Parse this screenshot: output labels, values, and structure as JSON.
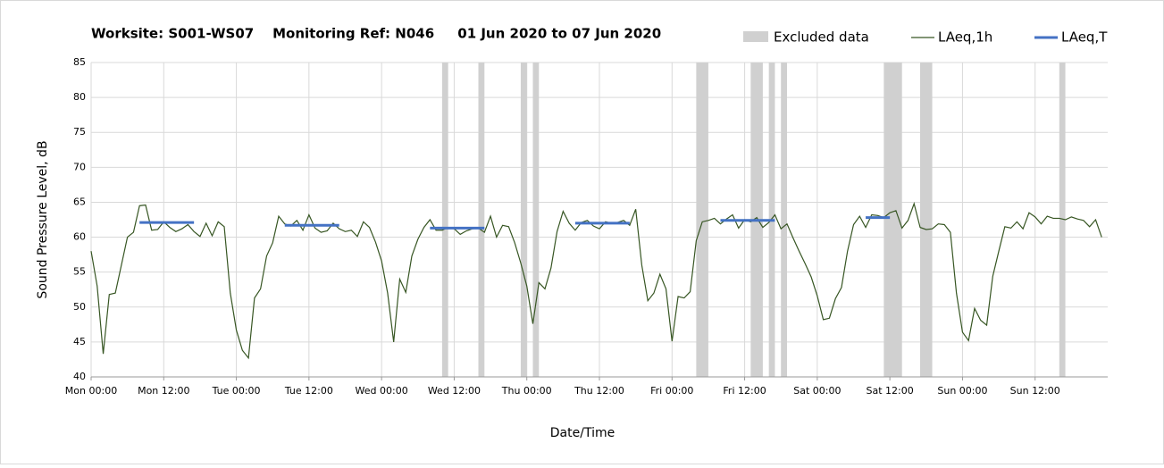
{
  "chart_data": {
    "type": "line",
    "title": "Worksite: S001-WS07    Monitoring Ref: N046     01 Jun 2020 to 07 Jun 2020",
    "xlabel": "Date/Time",
    "ylabel": "Sound Pressure Level, dB",
    "xlim": [
      0,
      168
    ],
    "xticks": [
      {
        "value": 0,
        "label": "Mon 00:00"
      },
      {
        "value": 12,
        "label": "Mon 12:00"
      },
      {
        "value": 24,
        "label": "Tue 00:00"
      },
      {
        "value": 36,
        "label": "Tue 12:00"
      },
      {
        "value": 48,
        "label": "Wed 00:00"
      },
      {
        "value": 60,
        "label": "Wed 12:00"
      },
      {
        "value": 72,
        "label": "Thu 00:00"
      },
      {
        "value": 84,
        "label": "Thu 12:00"
      },
      {
        "value": 96,
        "label": "Fri 00:00"
      },
      {
        "value": 108,
        "label": "Fri 12:00"
      },
      {
        "value": 120,
        "label": "Sat 00:00"
      },
      {
        "value": 132,
        "label": "Sat 12:00"
      },
      {
        "value": 144,
        "label": "Sun 00:00"
      },
      {
        "value": 156,
        "label": "Sun 12:00"
      }
    ],
    "ylim": [
      40,
      85
    ],
    "yticks": [
      40,
      45,
      50,
      55,
      60,
      65,
      70,
      75,
      80,
      85
    ],
    "grid": true,
    "legend": "top",
    "excluded": {
      "name": "Excluded data",
      "color": "#d0d0d0",
      "ranges": [
        [
          58,
          59
        ],
        [
          64,
          65
        ],
        [
          71,
          72
        ],
        [
          73,
          74
        ],
        [
          100,
          102
        ],
        [
          109,
          111
        ],
        [
          112,
          113
        ],
        [
          114,
          115
        ],
        [
          131,
          134
        ],
        [
          137,
          139
        ],
        [
          160,
          161
        ]
      ]
    },
    "x": [
      0,
      1,
      2,
      3,
      4,
      5,
      6,
      7,
      8,
      9,
      10,
      11,
      12,
      13,
      14,
      15,
      16,
      17,
      18,
      19,
      20,
      21,
      22,
      23,
      24,
      25,
      26,
      27,
      28,
      29,
      30,
      31,
      32,
      33,
      34,
      35,
      36,
      37,
      38,
      39,
      40,
      41,
      42,
      43,
      44,
      45,
      46,
      47,
      48,
      49,
      50,
      51,
      52,
      53,
      54,
      55,
      56,
      57,
      58,
      59,
      60,
      61,
      62,
      63,
      64,
      65,
      66,
      67,
      68,
      69,
      70,
      71,
      72,
      73,
      74,
      75,
      76,
      77,
      78,
      79,
      80,
      81,
      82,
      83,
      84,
      85,
      86,
      87,
      88,
      89,
      90,
      91,
      92,
      93,
      94,
      95,
      96,
      97,
      98,
      99,
      100,
      101,
      102,
      103,
      104,
      105,
      106,
      107,
      108,
      109,
      110,
      111,
      112,
      113,
      114,
      115,
      116,
      117,
      118,
      119,
      120,
      121,
      122,
      123,
      124,
      125,
      126,
      127,
      128,
      129,
      130,
      131,
      132,
      133,
      134,
      135,
      136,
      137,
      138,
      139,
      140,
      141,
      142,
      143,
      144,
      145,
      146,
      147,
      148,
      149,
      150,
      151,
      152,
      153,
      154,
      155,
      156,
      157,
      158,
      159,
      160,
      161,
      162,
      163,
      164,
      165,
      166,
      167
    ],
    "series": [
      {
        "name": "LAeq,1h",
        "color": "#375623",
        "values": [
          58,
          53,
          43.3,
          51.8,
          52,
          56,
          60,
          60.7,
          64.5,
          64.6,
          61,
          61.1,
          62.2,
          61.4,
          60.8,
          61.2,
          61.8,
          60.8,
          60.1,
          62,
          60.2,
          62.2,
          61.5,
          52,
          46.7,
          43.8,
          42.7,
          51.3,
          52.6,
          57.3,
          59.2,
          63,
          61.9,
          61.6,
          62.4,
          61,
          63.2,
          61.3,
          60.7,
          60.9,
          62,
          61.2,
          60.8,
          61,
          60.1,
          62.2,
          61.4,
          59.3,
          56.6,
          52,
          45,
          54,
          52.1,
          57.3,
          59.7,
          61.4,
          62.5,
          61,
          61,
          61.4,
          61.2,
          60.4,
          60.9,
          61.2,
          61.3,
          60.7,
          63,
          60,
          61.7,
          61.5,
          59.2,
          56.3,
          53,
          47.6,
          53.5,
          52.6,
          55.6,
          60.8,
          63.7,
          62,
          61,
          62.1,
          62.4,
          61.6,
          61.2,
          62.2,
          62,
          62.1,
          62.4,
          61.7,
          64,
          56,
          50.9,
          52,
          54.7,
          52.6,
          45.1,
          51.5,
          51.3,
          52.2,
          59.5,
          62.2,
          62.4,
          62.7,
          61.9,
          62.6,
          63.2,
          61.3,
          62.5,
          62.2,
          62.8,
          61.4,
          62.1,
          63.2,
          61.2,
          61.9,
          59.9,
          58,
          56.2,
          54.3,
          51.6,
          48.2,
          48.4,
          51.2,
          52.8,
          58,
          61.8,
          63,
          61.4,
          63.2,
          63.1,
          62.8,
          63.5,
          63.8,
          61.3,
          62.4,
          64.8,
          61.4,
          61.1,
          61.2,
          61.9,
          61.8,
          60.7,
          52,
          46.4,
          45.2,
          49.8,
          48.1,
          47.4,
          54.4,
          58,
          61.5,
          61.3,
          62.2,
          61.2,
          63.5,
          62.9,
          61.9,
          63,
          62.7,
          62.7,
          62.5,
          62.9,
          62.6,
          62.4,
          61.5,
          62.5,
          60
        ]
      },
      {
        "name": "LAeq,T",
        "color": "#4472c4",
        "segments": [
          {
            "start": 8,
            "end": 17,
            "value": 62.1
          },
          {
            "start": 32,
            "end": 41,
            "value": 61.7
          },
          {
            "start": 56,
            "end": 65,
            "value": 61.3
          },
          {
            "start": 80,
            "end": 89,
            "value": 62.0
          },
          {
            "start": 104,
            "end": 113,
            "value": 62.4
          },
          {
            "start": 128,
            "end": 132,
            "value": 62.8
          }
        ]
      }
    ]
  }
}
